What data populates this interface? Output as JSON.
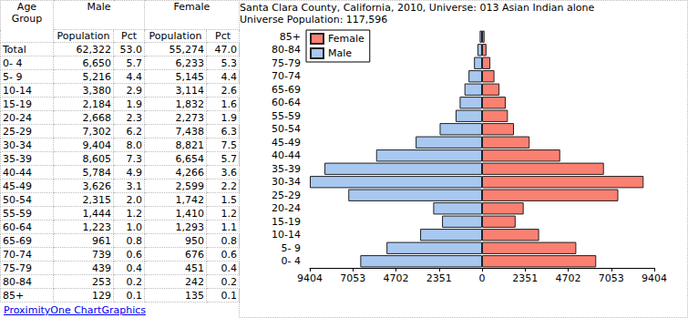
{
  "table": {
    "header": [
      "Age Group",
      "Male",
      "Female"
    ],
    "subheader": [
      "Population",
      "Pct",
      "Population",
      "Pct"
    ],
    "rows": [
      [
        "Total",
        "62,322",
        "53.0",
        "55,274",
        "47.0"
      ],
      [
        "0- 4",
        "6,650",
        "5.7",
        "6,233",
        "5.3"
      ],
      [
        "5- 9",
        "5,216",
        "4.4",
        "5,145",
        "4.4"
      ],
      [
        "10-14",
        "3,380",
        "2.9",
        "3,114",
        "2.6"
      ],
      [
        "15-19",
        "2,184",
        "1.9",
        "1,832",
        "1.6"
      ],
      [
        "20-24",
        "2,668",
        "2.3",
        "2,273",
        "1.9"
      ],
      [
        "25-29",
        "7,302",
        "6.2",
        "7,438",
        "6.3"
      ],
      [
        "30-34",
        "9,404",
        "8.0",
        "8,821",
        "7.5"
      ],
      [
        "35-39",
        "8,605",
        "7.3",
        "6,654",
        "5.7"
      ],
      [
        "40-44",
        "5,784",
        "4.9",
        "4,266",
        "3.6"
      ],
      [
        "45-49",
        "3,626",
        "3.1",
        "2,599",
        "2.2"
      ],
      [
        "50-54",
        "2,315",
        "2.0",
        "1,742",
        "1.5"
      ],
      [
        "55-59",
        "1,444",
        "1.2",
        "1,410",
        "1.2"
      ],
      [
        "60-64",
        "1,223",
        "1.0",
        "1,293",
        "1.1"
      ],
      [
        "65-69",
        "961",
        "0.8",
        "950",
        "0.8"
      ],
      [
        "70-74",
        "739",
        "0.6",
        "676",
        "0.6"
      ],
      [
        "75-79",
        "439",
        "0.4",
        "451",
        "0.4"
      ],
      [
        "80-84",
        "253",
        "0.2",
        "242",
        "0.2"
      ],
      [
        "85+",
        "129",
        "0.1",
        "135",
        "0.1"
      ]
    ]
  },
  "footer": "ProximityOne ChartGraphics",
  "chart_data": {
    "type": "bar",
    "orientation": "horizontal",
    "title": "Santa Clara County, California, 2010, Universe: 013 Asian Indian alone",
    "subtitle": "Universe Population: 117,596",
    "categories": [
      "0- 4",
      "5- 9",
      "10-14",
      "15-19",
      "20-24",
      "25-29",
      "30-34",
      "35-39",
      "40-44",
      "45-49",
      "50-54",
      "55-59",
      "60-64",
      "65-69",
      "70-74",
      "75-79",
      "80-84",
      "85+"
    ],
    "series": [
      {
        "name": "Female",
        "color": "#fa8072",
        "values": [
          6233,
          5145,
          3114,
          1832,
          2273,
          7438,
          8821,
          6654,
          4266,
          2599,
          1742,
          1410,
          1293,
          950,
          676,
          451,
          242,
          135
        ]
      },
      {
        "name": "Male",
        "color": "#a8c8f0",
        "values": [
          6650,
          5216,
          3380,
          2184,
          2668,
          7302,
          9404,
          8605,
          5784,
          3626,
          2315,
          1444,
          1223,
          961,
          739,
          439,
          253,
          129
        ]
      }
    ],
    "xlim": [
      0,
      9404
    ],
    "xticks": [
      0,
      2351,
      4702,
      7053,
      9404
    ],
    "grid": false,
    "legend": "top-left"
  }
}
